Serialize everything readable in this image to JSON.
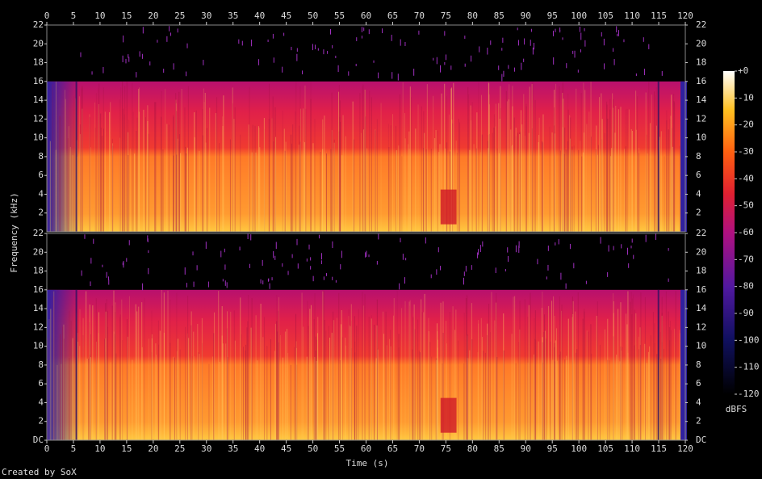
{
  "chart_data": {
    "type": "spectrogram",
    "x_label": "Time (s)",
    "y_label": "Frequency (kHz)",
    "xlim": [
      0,
      120
    ],
    "xticks": [
      0,
      5,
      10,
      15,
      20,
      25,
      30,
      35,
      40,
      45,
      50,
      55,
      60,
      65,
      70,
      75,
      80,
      85,
      90,
      95,
      100,
      105,
      110,
      115,
      120
    ],
    "channels": [
      {
        "ylim": [
          0,
          22
        ],
        "yticks": [
          2,
          4,
          6,
          8,
          10,
          12,
          14,
          16,
          18,
          20,
          22
        ]
      },
      {
        "ylim": [
          0,
          22
        ],
        "yticks": [
          {
            "value": 0,
            "label": "DC"
          },
          2,
          4,
          6,
          8,
          10,
          12,
          14,
          16,
          18,
          20,
          22
        ]
      }
    ],
    "colorbar": {
      "label": "dBFS",
      "lim": [
        -120,
        0
      ],
      "ticks": [
        {
          "value": 0,
          "label": "+0"
        },
        -10,
        -20,
        -30,
        -40,
        -50,
        -60,
        -70,
        -80,
        -90,
        -100,
        -110,
        -120
      ]
    },
    "footer": "Created by SoX"
  }
}
